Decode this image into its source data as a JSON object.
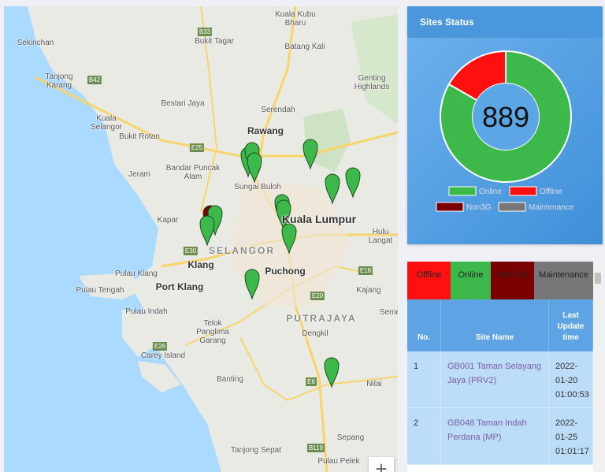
{
  "map": {
    "labels": [
      "Kuala Kubu Bharu",
      "B33",
      "Bukit Tagar",
      "Sekinchan",
      "Batang Kali",
      "Tanjong Karang",
      "B42",
      "Genting Highlands",
      "Bestari Jaya",
      "Serendah",
      "Kuala Selangor",
      "Rawang",
      "Bukit Rotan",
      "E25",
      "Jeram",
      "Bandar Puncak Alam",
      "Sungai Buloh",
      "Kuala Lumpur",
      "Kapar",
      "Hulu Langat",
      "SELANGOR",
      "Klang",
      "Puchong",
      "E30",
      "Pulau Klang",
      "Pulau Tengah",
      "Port Klang",
      "E18",
      "Kajang",
      "E20",
      "PUTRAJAYA",
      "Pulau Indah",
      "Seme",
      "Telok Panglima Garang",
      "E26",
      "Carey Island",
      "Dengkil",
      "Banting",
      "E6",
      "Nilai",
      "Sepang",
      "B119",
      "Tanjong Sepat",
      "Pulau Pelek"
    ],
    "zoom_button": "+"
  },
  "panel_title": "Sites Status",
  "chart_data": {
    "type": "donut",
    "center_label": 889,
    "categories": [
      "Online",
      "Offline",
      "Non3G",
      "Maintenance"
    ],
    "values": [
      740,
      149,
      0,
      0
    ],
    "colors": [
      "#3db84a",
      "#ff1010",
      "#7a0000",
      "#777777"
    ]
  },
  "tabs": [
    "Offline",
    "Online",
    "Non 3G",
    "Maintenance"
  ],
  "table": {
    "headers": [
      "No.",
      "Site Name",
      "Last Update time"
    ],
    "rows": [
      [
        1,
        "GB001 Taman Selayang Jaya (PRV2)",
        "2022-01-20 01:00:53"
      ],
      [
        2,
        "GB048 Taman Indah Perdana (MP)",
        "2022-01-25 01:01:17"
      ]
    ]
  }
}
